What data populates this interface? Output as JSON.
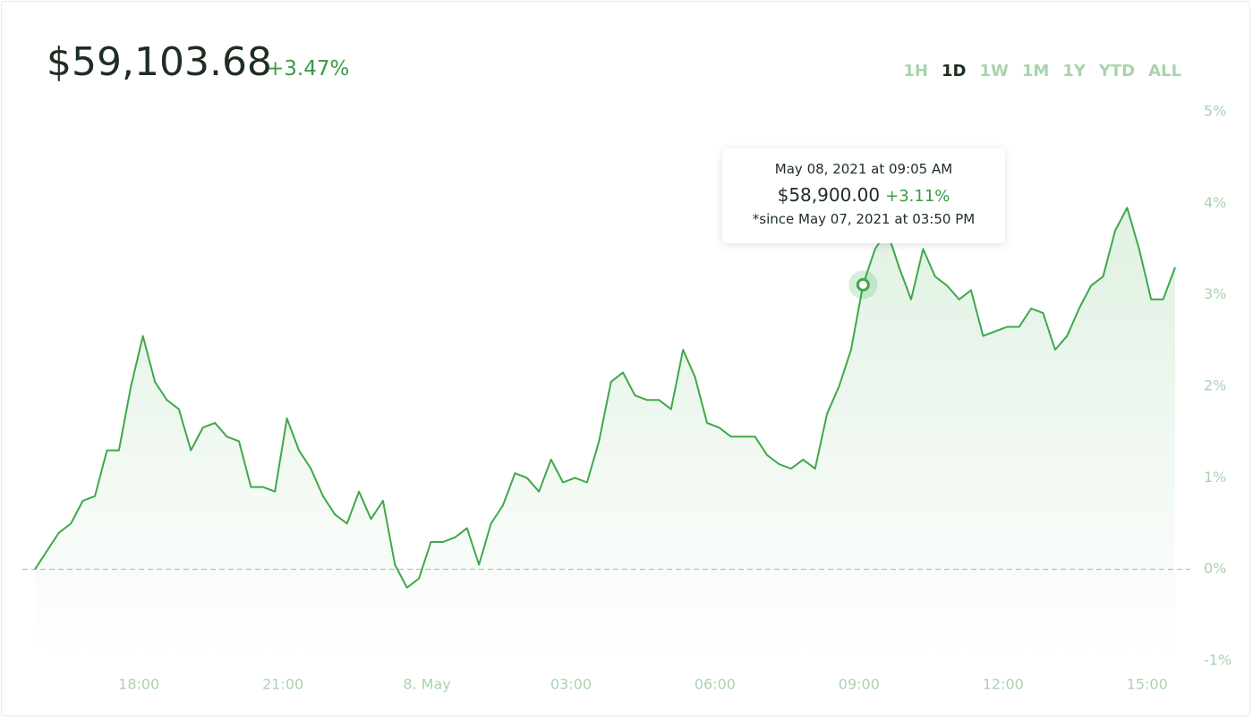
{
  "chart_data": {
    "type": "line",
    "price": "$59,103.68",
    "change": "+3.47%",
    "ranges": [
      "1H",
      "1D",
      "1W",
      "1M",
      "1Y",
      "YTD",
      "ALL"
    ],
    "active_range": "1D",
    "x": [
      "15:50",
      "16:05",
      "16:20",
      "16:35",
      "16:50",
      "17:05",
      "17:20",
      "17:35",
      "17:50",
      "18:05",
      "18:20",
      "18:35",
      "18:50",
      "19:05",
      "19:20",
      "19:35",
      "19:50",
      "20:05",
      "20:20",
      "20:35",
      "20:50",
      "21:05",
      "21:20",
      "21:35",
      "21:50",
      "22:05",
      "22:20",
      "22:35",
      "22:50",
      "23:05",
      "23:20",
      "23:35",
      "23:50",
      "00:05",
      "00:20",
      "00:35",
      "00:50",
      "01:05",
      "01:20",
      "01:35",
      "01:50",
      "02:05",
      "02:20",
      "02:35",
      "02:50",
      "03:05",
      "03:20",
      "03:35",
      "03:50",
      "04:05",
      "04:20",
      "04:35",
      "04:50",
      "05:05",
      "05:20",
      "05:35",
      "05:50",
      "06:05",
      "06:20",
      "06:35",
      "06:50",
      "07:05",
      "07:20",
      "07:35",
      "07:50",
      "08:05",
      "08:20",
      "08:35",
      "08:50",
      "09:05",
      "09:20",
      "09:35",
      "09:50",
      "10:05",
      "10:20",
      "10:35",
      "10:50",
      "11:05",
      "11:20",
      "11:35",
      "11:50",
      "12:05",
      "12:20",
      "12:35",
      "12:50",
      "13:05",
      "13:20",
      "13:35",
      "13:50",
      "14:05",
      "14:20",
      "14:35",
      "14:50",
      "15:05",
      "15:20",
      "15:35"
    ],
    "values": [
      0,
      0.2,
      0.4,
      0.5,
      0.75,
      0.8,
      1.3,
      1.3,
      2.0,
      2.55,
      2.05,
      1.85,
      1.75,
      1.3,
      1.55,
      1.6,
      1.45,
      1.4,
      0.9,
      0.9,
      0.85,
      1.65,
      1.3,
      1.1,
      0.8,
      0.6,
      0.5,
      0.85,
      0.55,
      0.75,
      0.05,
      -0.2,
      -0.1,
      0.3,
      0.3,
      0.35,
      0.45,
      0.05,
      0.5,
      0.7,
      1.05,
      1.0,
      0.85,
      1.2,
      0.95,
      1.0,
      0.95,
      1.4,
      2.05,
      2.15,
      1.9,
      1.85,
      1.85,
      1.75,
      2.4,
      2.1,
      1.6,
      1.55,
      1.45,
      1.45,
      1.45,
      1.25,
      1.15,
      1.1,
      1.2,
      1.1,
      1.7,
      2.0,
      2.4,
      3.11,
      3.5,
      3.7,
      3.3,
      2.95,
      3.5,
      3.2,
      3.1,
      2.95,
      3.05,
      2.55,
      2.6,
      2.65,
      2.65,
      2.85,
      2.8,
      2.4,
      2.55,
      2.85,
      3.1,
      3.2,
      3.7,
      3.95,
      3.5,
      2.95,
      2.95,
      3.3
    ],
    "color": "#3ea84a",
    "ylim": [
      -1,
      5
    ],
    "yticks": [
      {
        "value": -1,
        "label": "-1%"
      },
      {
        "value": 0,
        "label": "0%"
      },
      {
        "value": 1,
        "label": "1%"
      },
      {
        "value": 2,
        "label": "2%"
      },
      {
        "value": 3,
        "label": "3%"
      },
      {
        "value": 4,
        "label": "4%"
      },
      {
        "value": 5,
        "label": "5%"
      }
    ],
    "xticks": [
      {
        "value": "18:00",
        "label": "18:00"
      },
      {
        "value": "21:00",
        "label": "21:00"
      },
      {
        "value": "00:00",
        "label": "8. May"
      },
      {
        "value": "03:00",
        "label": "03:00"
      },
      {
        "value": "06:00",
        "label": "06:00"
      },
      {
        "value": "09:00",
        "label": "09:00"
      },
      {
        "value": "12:00",
        "label": "12:00"
      },
      {
        "value": "15:00",
        "label": "15:00"
      }
    ],
    "zero_line": true,
    "tooltip": {
      "index": 69,
      "date": "May 08, 2021 at 09:05 AM",
      "price": "$58,900.00",
      "change": "+3.11%",
      "since": "*since May 07, 2021 at 03:50 PM"
    }
  }
}
